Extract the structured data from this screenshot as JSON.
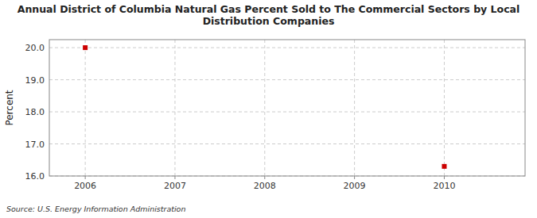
{
  "chart_data": {
    "type": "scatter",
    "title": "Annual District of Columbia Natural Gas Percent Sold to The Commercial Sectors by Local\nDistribution Companies",
    "ylabel": "Percent",
    "annotations": [
      "Source: U.S. Energy Information Administration"
    ],
    "x": [
      2006,
      2010
    ],
    "values": [
      20.0,
      16.3
    ],
    "color": "#cc0000",
    "marker": "square",
    "xlim": [
      2005.6,
      2010.9
    ],
    "ylim": [
      16.0,
      20.25
    ],
    "xticks": [
      2006,
      2007,
      2008,
      2009,
      2010
    ],
    "yticks": [
      {
        "value": 16.0,
        "label": "16.0"
      },
      {
        "value": 17.0,
        "label": "17.0"
      },
      {
        "value": 18.0,
        "label": "18.0"
      },
      {
        "value": 19.0,
        "label": "19.0"
      },
      {
        "value": 20.0,
        "label": "20.0"
      }
    ],
    "grid": true
  }
}
